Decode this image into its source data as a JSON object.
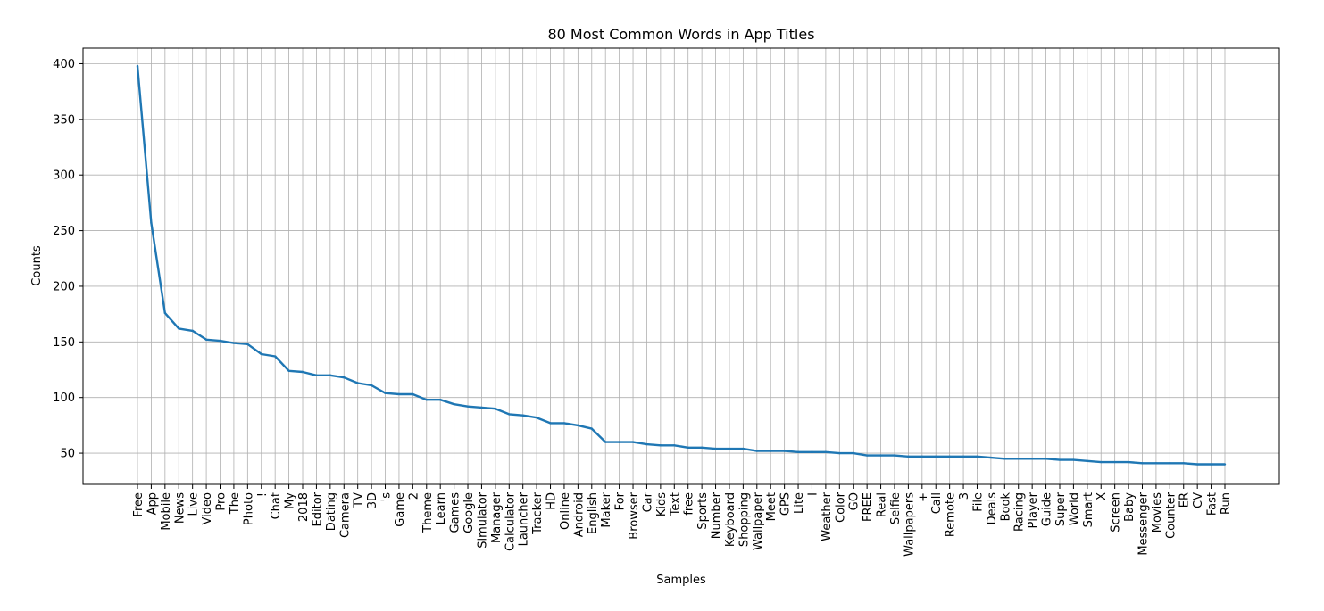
{
  "chart_data": {
    "type": "line",
    "title": "80 Most Common Words in App Titles",
    "xlabel": "Samples",
    "ylabel": "Counts",
    "ylim": [
      22,
      414
    ],
    "grid": true,
    "line_color": "#1f77b4",
    "yticks": [
      50,
      100,
      150,
      200,
      250,
      300,
      350,
      400
    ],
    "categories": [
      "Free",
      "App",
      "Mobile",
      "News",
      "Live",
      "Video",
      "Pro",
      "The",
      "Photo",
      "!",
      "Chat",
      "My",
      "2018",
      "Editor",
      "Dating",
      "Camera",
      "TV",
      "3D",
      "'s",
      "Game",
      "2",
      "Theme",
      "Learn",
      "Games",
      "Google",
      "Simulator",
      "Manager",
      "Calculator",
      "Launcher",
      "Tracker",
      "HD",
      "Online",
      "Android",
      "English",
      "Maker",
      "For",
      "Browser",
      "Car",
      "Kids",
      "Text",
      "free",
      "Sports",
      "Number",
      "Keyboard",
      "Shopping",
      "Wallpaper",
      "Meet",
      "GPS",
      "Lite",
      "I",
      "Weather",
      "Color",
      "GO",
      "FREE",
      "Real",
      "Selfie",
      "Wallpapers",
      "+",
      "Call",
      "Remote",
      "3",
      "File",
      "Deals",
      "Book",
      "Racing",
      "Player",
      "Guide",
      "Super",
      "World",
      "Smart",
      "X",
      "Screen",
      "Baby",
      "Messenger",
      "Movies",
      "Counter",
      "ER",
      "CV",
      "Fast",
      "Run"
    ],
    "series": [
      {
        "values": [
          398,
          257,
          176,
          162,
          160,
          152,
          151,
          149,
          148,
          139,
          137,
          124,
          123,
          120,
          120,
          118,
          113,
          111,
          104,
          103,
          103,
          98,
          98,
          94,
          92,
          91,
          90,
          85,
          84,
          82,
          77,
          77,
          75,
          72,
          60,
          60,
          60,
          58,
          57,
          57,
          55,
          55,
          54,
          54,
          54,
          52,
          52,
          52,
          51,
          51,
          51,
          50,
          50,
          48,
          48,
          48,
          47,
          47,
          47,
          47,
          47,
          47,
          46,
          45,
          45,
          45,
          45,
          44,
          44,
          43,
          42,
          42,
          42,
          41,
          41,
          41,
          41,
          40,
          40,
          40
        ]
      }
    ]
  }
}
